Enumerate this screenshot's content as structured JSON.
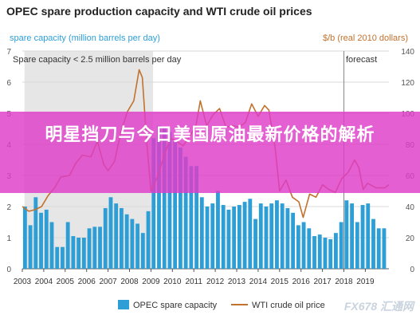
{
  "title": "OPEC spare production capacity and WTI crude oil prices",
  "overlay_text": "明星挡刀与今日美国原油最新价格的解析",
  "watermark": "FX678 汇通网",
  "colors": {
    "bars": "#2d9fd6",
    "line": "#c1722f",
    "shade": "#e6e6e6",
    "overlay": "#de3cc8",
    "left_axis_text": "#2d9fd6",
    "right_axis_text": "#c1722f",
    "grid": "#d9d9d9"
  },
  "chart_data": {
    "type": "bar",
    "y_left_label": "spare capacity (million barrels per day)",
    "y_right_label": "$/b (real 2010 dollars)",
    "y_left_ticks": [
      "0",
      "1",
      "2",
      "3",
      "4",
      "5",
      "6",
      "7"
    ],
    "y_right_ticks": [
      "0",
      "20",
      "40",
      "60",
      "80",
      "100",
      "120",
      "140"
    ],
    "ylim_left": [
      0,
      7
    ],
    "ylim_right": [
      0,
      140
    ],
    "x_ticks": [
      "2003",
      "2004",
      "2005",
      "2006",
      "2007",
      "2008",
      "2009",
      "2010",
      "2011",
      "2012",
      "2013",
      "2014",
      "2015",
      "2016",
      "2017",
      "2018",
      "2019"
    ],
    "xlim": [
      2003,
      2020.1
    ],
    "annotations": {
      "low_capacity": "Spare capacity < 2.5 million barrels per day",
      "forecast": "forecast"
    },
    "shaded_region": [
      2003.1,
      2009.1
    ],
    "forecast_start": 2018.0,
    "legend": [
      "OPEC spare capacity",
      "WTI crude oil price"
    ],
    "series": [
      {
        "name": "OPEC spare capacity",
        "kind": "bar",
        "axis": "left",
        "x": [
          2003.125,
          2003.375,
          2003.625,
          2003.875,
          2004.125,
          2004.375,
          2004.625,
          2004.875,
          2005.125,
          2005.375,
          2005.625,
          2005.875,
          2006.125,
          2006.375,
          2006.625,
          2006.875,
          2007.125,
          2007.375,
          2007.625,
          2007.875,
          2008.125,
          2008.375,
          2008.625,
          2008.875,
          2009.125,
          2009.375,
          2009.625,
          2009.875,
          2010.125,
          2010.375,
          2010.625,
          2010.875,
          2011.125,
          2011.375,
          2011.625,
          2011.875,
          2012.125,
          2012.375,
          2012.625,
          2012.875,
          2013.125,
          2013.375,
          2013.625,
          2013.875,
          2014.125,
          2014.375,
          2014.625,
          2014.875,
          2015.125,
          2015.375,
          2015.625,
          2015.875,
          2016.125,
          2016.375,
          2016.625,
          2016.875,
          2017.125,
          2017.375,
          2017.625,
          2017.875,
          2018.125,
          2018.375,
          2018.625,
          2018.875,
          2019.125,
          2019.375,
          2019.625,
          2019.875
        ],
        "values": [
          2.0,
          1.4,
          2.3,
          1.8,
          1.9,
          1.5,
          0.7,
          0.7,
          1.5,
          1.05,
          1.0,
          1.0,
          1.3,
          1.35,
          1.35,
          1.95,
          2.3,
          2.1,
          1.95,
          1.75,
          1.6,
          1.45,
          1.15,
          1.85,
          4.2,
          4.6,
          4.55,
          4.4,
          4.1,
          3.9,
          3.6,
          3.3,
          3.3,
          2.3,
          2.0,
          2.1,
          2.5,
          2.05,
          1.9,
          2.0,
          2.05,
          2.15,
          2.25,
          1.6,
          2.1,
          2.0,
          2.1,
          2.2,
          2.1,
          1.95,
          1.8,
          1.4,
          1.5,
          1.3,
          1.05,
          1.1,
          1.0,
          0.95,
          1.15,
          1.5,
          2.2,
          2.1,
          1.5,
          2.05,
          2.1,
          1.6,
          1.3,
          1.3
        ]
      },
      {
        "name": "WTI crude oil price",
        "kind": "line",
        "axis": "right",
        "x": [
          2003.0,
          2003.3,
          2003.6,
          2003.9,
          2004.2,
          2004.5,
          2004.8,
          2005.2,
          2005.5,
          2005.8,
          2006.2,
          2006.5,
          2006.8,
          2007.0,
          2007.3,
          2007.6,
          2007.9,
          2008.2,
          2008.45,
          2008.6,
          2008.8,
          2009.0,
          2009.3,
          2009.6,
          2009.9,
          2010.2,
          2010.5,
          2010.8,
          2011.1,
          2011.3,
          2011.6,
          2011.9,
          2012.2,
          2012.5,
          2012.8,
          2013.1,
          2013.4,
          2013.7,
          2014.0,
          2014.3,
          2014.5,
          2014.8,
          2015.0,
          2015.3,
          2015.6,
          2015.9,
          2016.1,
          2016.4,
          2016.7,
          2017.0,
          2017.3,
          2017.6,
          2017.9,
          2018.2,
          2018.5,
          2018.7,
          2018.9,
          2019.1,
          2019.5,
          2019.9,
          2020.1
        ],
        "values": [
          40,
          37,
          38,
          40,
          47,
          52,
          59,
          60,
          68,
          73,
          72,
          82,
          67,
          63,
          69,
          88,
          101,
          108,
          128,
          123,
          82,
          50,
          59,
          72,
          84,
          82,
          79,
          85,
          92,
          108,
          92,
          99,
          103,
          91,
          92,
          91,
          94,
          106,
          98,
          105,
          102,
          77,
          50,
          57,
          46,
          43,
          33,
          48,
          46,
          54,
          51,
          49,
          58,
          62,
          70,
          65,
          51,
          55,
          52,
          52,
          54
        ]
      }
    ]
  }
}
